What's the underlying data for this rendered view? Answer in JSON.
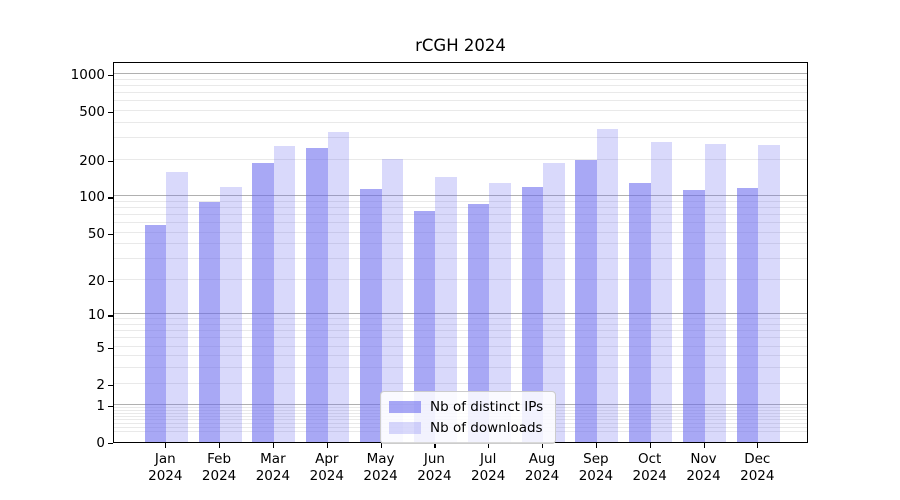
{
  "chart_data": {
    "type": "bar",
    "title": "rCGH 2024",
    "x_categories": [
      "Jan",
      "Feb",
      "Mar",
      "Apr",
      "May",
      "Jun",
      "Jul",
      "Aug",
      "Sep",
      "Oct",
      "Nov",
      "Dec"
    ],
    "x_year": "2024",
    "y_scale": "log10(value+1)",
    "y_ticks": [
      0,
      1,
      2,
      5,
      10,
      20,
      50,
      100,
      200,
      500,
      1000
    ],
    "y_max": 1284,
    "grid": "horizontal, major at powers of 10, light minors between",
    "legend_position": "bottom-center-inside",
    "series": [
      {
        "name": "Nb of distinct IPs",
        "color": "rgba(102,102,238,0.57)",
        "values": [
          58,
          90,
          188,
          248,
          116,
          76,
          86,
          119,
          198,
          128,
          113,
          117
        ]
      },
      {
        "name": "Nb of downloads",
        "color": "rgba(102,102,238,0.25)",
        "values": [
          160,
          119,
          258,
          340,
          202,
          144,
          128,
          187,
          358,
          278,
          270,
          265
        ]
      }
    ]
  },
  "colors": {
    "axis": "#000000",
    "grid_major": "#b0b0b0",
    "grid_minor": "#e9e9e9",
    "background": "#ffffff",
    "legend_border": "#cccccc",
    "bar_base": "#6666ee"
  }
}
